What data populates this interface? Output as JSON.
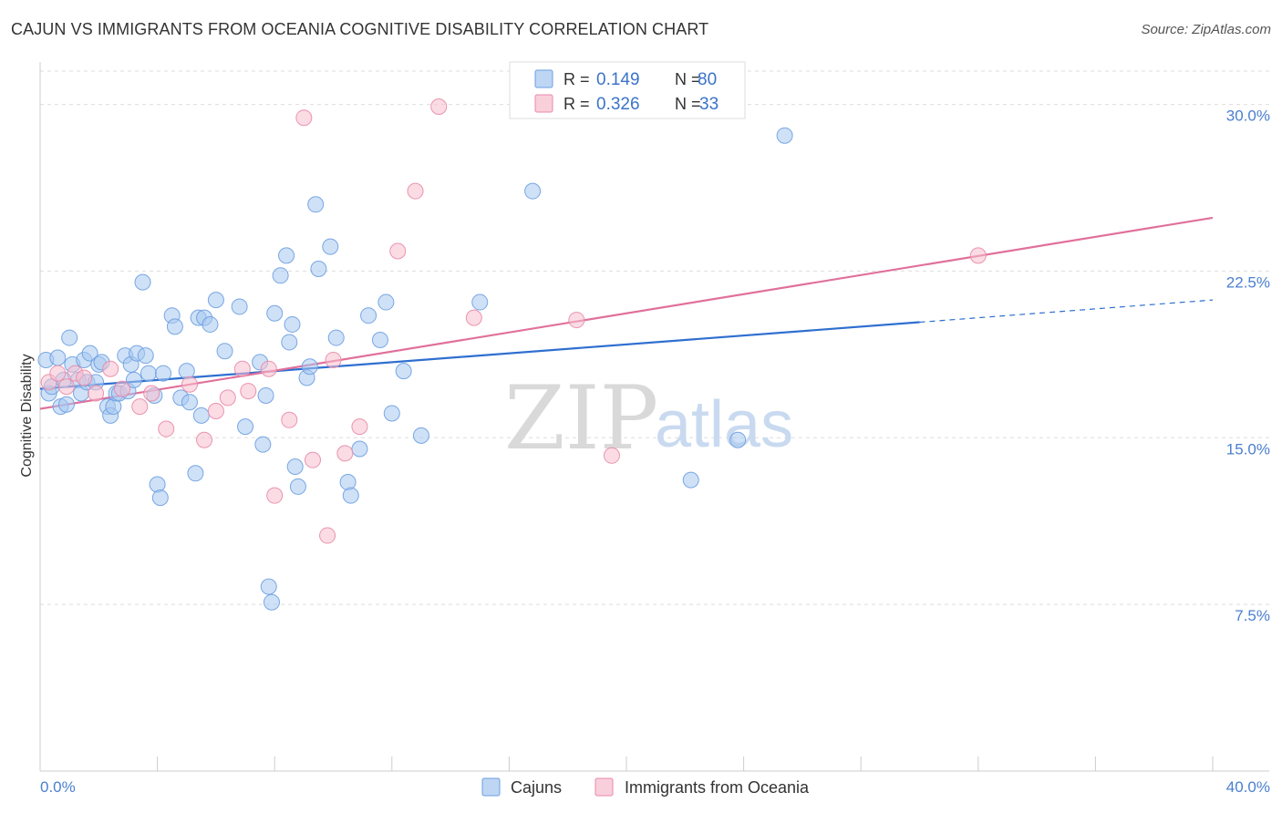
{
  "title": "CAJUN VS IMMIGRANTS FROM OCEANIA COGNITIVE DISABILITY CORRELATION CHART",
  "source": "Source: ZipAtlas.com",
  "watermark": {
    "zip": "ZIP",
    "atlas": "atlas"
  },
  "legend_box": {
    "rows": [
      {
        "r_label": "R =",
        "r_value": "0.149",
        "n_label": "N =",
        "n_value": "80",
        "color": "#a8c8f0",
        "stroke": "#6b9fe0"
      },
      {
        "r_label": "R =",
        "r_value": "0.326",
        "n_label": "N =",
        "n_value": "33",
        "color": "#f7bfd0",
        "stroke": "#e88aa8"
      }
    ]
  },
  "bottom_legend": [
    {
      "label": "Cajuns",
      "color": "#a8c8f0",
      "stroke": "#6b9fe0"
    },
    {
      "label": "Immigrants from Oceania",
      "color": "#f7bfd0",
      "stroke": "#e88aa8"
    }
  ],
  "chart_data": {
    "type": "scatter",
    "title": "CAJUN VS IMMIGRANTS FROM OCEANIA COGNITIVE DISABILITY CORRELATION CHART",
    "xlabel": "",
    "ylabel": "Cognitive Disability",
    "xlim": [
      0,
      40
    ],
    "ylim": [
      0,
      31.5
    ],
    "x_tick_labels": [
      "0.0%",
      "40.0%"
    ],
    "y_ticks": [
      7.5,
      15.0,
      22.5,
      30.0
    ],
    "y_tick_labels": [
      "7.5%",
      "15.0%",
      "22.5%",
      "30.0%"
    ],
    "grid": true,
    "legend_position": "top-center",
    "series": [
      {
        "name": "Cajuns",
        "color": "#6b9fe0",
        "fill": "#a8c8f0",
        "trend": {
          "x0": 0,
          "y0": 17.2,
          "x1": 30.0,
          "y1": 20.2,
          "dash_to_x": 40,
          "dash_to_y": 21.2,
          "line_color": "#2f6fd0"
        },
        "points": [
          [
            0.2,
            18.5
          ],
          [
            0.3,
            17.0
          ],
          [
            0.4,
            17.3
          ],
          [
            0.6,
            18.6
          ],
          [
            0.7,
            16.4
          ],
          [
            0.8,
            17.6
          ],
          [
            0.9,
            16.5
          ],
          [
            1.0,
            19.5
          ],
          [
            1.1,
            18.3
          ],
          [
            1.3,
            17.6
          ],
          [
            1.4,
            17.0
          ],
          [
            1.5,
            18.5
          ],
          [
            1.6,
            17.5
          ],
          [
            1.7,
            18.8
          ],
          [
            1.9,
            17.5
          ],
          [
            2.0,
            18.3
          ],
          [
            2.1,
            18.4
          ],
          [
            2.3,
            16.4
          ],
          [
            2.4,
            16.0
          ],
          [
            2.5,
            16.4
          ],
          [
            2.6,
            17.0
          ],
          [
            2.7,
            17.0
          ],
          [
            2.9,
            18.7
          ],
          [
            3.0,
            17.1
          ],
          [
            3.1,
            18.3
          ],
          [
            3.2,
            17.6
          ],
          [
            3.3,
            18.8
          ],
          [
            3.5,
            22.0
          ],
          [
            3.6,
            18.7
          ],
          [
            3.7,
            17.9
          ],
          [
            3.9,
            16.9
          ],
          [
            4.0,
            12.9
          ],
          [
            4.1,
            12.3
          ],
          [
            4.2,
            17.9
          ],
          [
            4.5,
            20.5
          ],
          [
            4.6,
            20.0
          ],
          [
            4.8,
            16.8
          ],
          [
            5.0,
            18.0
          ],
          [
            5.1,
            16.6
          ],
          [
            5.3,
            13.4
          ],
          [
            5.4,
            20.4
          ],
          [
            5.5,
            16.0
          ],
          [
            5.6,
            20.4
          ],
          [
            5.8,
            20.1
          ],
          [
            6.0,
            21.2
          ],
          [
            6.3,
            18.9
          ],
          [
            6.8,
            20.9
          ],
          [
            7.0,
            15.5
          ],
          [
            7.5,
            18.4
          ],
          [
            7.6,
            14.7
          ],
          [
            7.7,
            16.9
          ],
          [
            7.8,
            8.3
          ],
          [
            7.9,
            7.6
          ],
          [
            8.0,
            20.6
          ],
          [
            8.2,
            22.3
          ],
          [
            8.4,
            23.2
          ],
          [
            8.5,
            19.3
          ],
          [
            8.6,
            20.1
          ],
          [
            8.7,
            13.7
          ],
          [
            8.8,
            12.8
          ],
          [
            9.1,
            17.7
          ],
          [
            9.2,
            18.2
          ],
          [
            9.4,
            25.5
          ],
          [
            9.5,
            22.6
          ],
          [
            9.9,
            23.6
          ],
          [
            10.1,
            19.5
          ],
          [
            10.5,
            13.0
          ],
          [
            10.6,
            12.4
          ],
          [
            10.9,
            14.5
          ],
          [
            11.2,
            20.5
          ],
          [
            11.6,
            19.4
          ],
          [
            11.8,
            21.1
          ],
          [
            12.0,
            16.1
          ],
          [
            12.4,
            18.0
          ],
          [
            13.0,
            15.1
          ],
          [
            15.0,
            21.1
          ],
          [
            16.8,
            26.1
          ],
          [
            22.2,
            13.1
          ],
          [
            23.8,
            14.9
          ],
          [
            25.4,
            28.6
          ]
        ]
      },
      {
        "name": "Immigrants from Oceania",
        "color": "#e88aa8",
        "fill": "#f7bfd0",
        "trend": {
          "x0": 0,
          "y0": 16.3,
          "x1": 40,
          "y1": 24.9,
          "line_color": "#e0709a"
        },
        "points": [
          [
            0.3,
            17.5
          ],
          [
            0.6,
            17.9
          ],
          [
            0.9,
            17.3
          ],
          [
            1.2,
            17.9
          ],
          [
            1.5,
            17.7
          ],
          [
            1.9,
            17.0
          ],
          [
            2.4,
            18.1
          ],
          [
            2.8,
            17.2
          ],
          [
            3.4,
            16.4
          ],
          [
            3.8,
            17.0
          ],
          [
            4.3,
            15.4
          ],
          [
            5.1,
            17.4
          ],
          [
            5.6,
            14.9
          ],
          [
            6.0,
            16.2
          ],
          [
            6.4,
            16.8
          ],
          [
            6.9,
            18.1
          ],
          [
            7.1,
            17.1
          ],
          [
            7.8,
            18.1
          ],
          [
            8.0,
            12.4
          ],
          [
            8.5,
            15.8
          ],
          [
            9.3,
            14.0
          ],
          [
            9.0,
            29.4
          ],
          [
            9.8,
            10.6
          ],
          [
            10.0,
            18.5
          ],
          [
            10.4,
            14.3
          ],
          [
            10.9,
            15.5
          ],
          [
            12.2,
            23.4
          ],
          [
            12.8,
            26.1
          ],
          [
            13.6,
            29.9
          ],
          [
            14.8,
            20.4
          ],
          [
            18.3,
            20.3
          ],
          [
            19.5,
            14.2
          ],
          [
            32.0,
            23.2
          ]
        ]
      }
    ]
  }
}
